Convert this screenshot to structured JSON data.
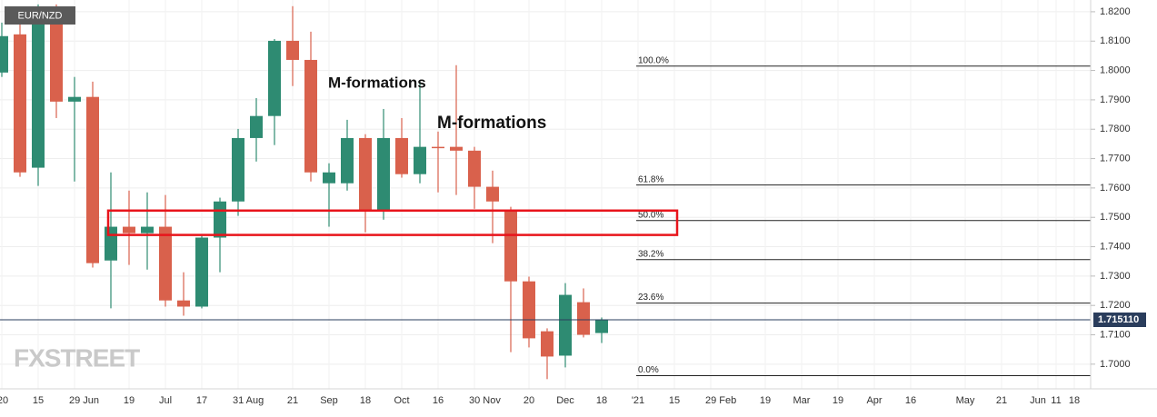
{
  "chart_data": {
    "type": "candlestick",
    "symbol": "EUR/NZD",
    "logo": "FXSTREET",
    "annotations": [
      "M-formations",
      "M-formations"
    ],
    "categories": [
      "'20",
      null,
      "15",
      null,
      "29 Jun",
      null,
      null,
      "19",
      null,
      "Jul",
      null,
      "17",
      null,
      "31 Aug",
      null,
      null,
      "21",
      null,
      "Sep",
      null,
      "18",
      null,
      "Oct",
      null,
      "16",
      null,
      "30 Nov",
      null,
      null,
      "20",
      null,
      "Dec",
      null,
      "18",
      null,
      "'21",
      null,
      "15",
      null,
      "29 Feb",
      null,
      null,
      "19",
      null,
      "Mar",
      null,
      "19",
      null,
      "Apr",
      null,
      "16",
      null,
      null,
      "May",
      null,
      "21",
      null,
      "Jun",
      "11",
      "18"
    ],
    "open": [
      1.7993,
      1.8123,
      1.7669,
      1.8209,
      1.7894,
      1.791,
      1.7353,
      1.7468,
      1.7446,
      1.7468,
      1.7217,
      1.7196,
      1.7431,
      1.7554,
      1.777,
      1.7845,
      1.8101,
      1.8036,
      1.7616,
      1.7616,
      1.777,
      1.7523,
      1.777,
      1.7647,
      1.774,
      1.774,
      1.7727,
      1.7604,
      1.7523,
      1.7282,
      1.7112,
      1.7029,
      1.7211,
      1.7106,
      null,
      null,
      null,
      null,
      null,
      null,
      null,
      null,
      null,
      null,
      null,
      null,
      null,
      null,
      null,
      null,
      null,
      null,
      null,
      null,
      null,
      null,
      null,
      null,
      null,
      null
    ],
    "high": [
      1.8163,
      1.8185,
      1.8225,
      1.8225,
      1.7978,
      1.7962,
      1.7653,
      1.7591,
      1.7585,
      1.7576,
      1.7313,
      1.7437,
      1.7567,
      1.7801,
      1.7906,
      1.8107,
      1.8219,
      1.8132,
      1.7684,
      1.7832,
      1.7783,
      1.7869,
      1.7838,
      1.7962,
      1.7792,
      1.8018,
      1.774,
      1.7659,
      1.7536,
      1.7298,
      1.7122,
      1.7276,
      1.7258,
      1.7159,
      null,
      null,
      null,
      null,
      null,
      null,
      null,
      null,
      null,
      null,
      null,
      null,
      null,
      null,
      null,
      null,
      null,
      null,
      null,
      null,
      null,
      null,
      null,
      null,
      null,
      null
    ],
    "low": [
      1.7978,
      1.7638,
      1.7607,
      1.7838,
      1.7622,
      1.7329,
      1.719,
      1.7338,
      1.7322,
      1.7196,
      1.7165,
      1.719,
      1.7313,
      1.7505,
      1.769,
      1.7746,
      1.7947,
      1.7622,
      1.7468,
      1.7591,
      1.7449,
      1.7492,
      1.7635,
      1.7616,
      1.7585,
      1.7576,
      1.7529,
      1.7412,
      1.7041,
      1.7057,
      1.6949,
      1.6989,
      1.7091,
      1.7072,
      null,
      null,
      null,
      null,
      null,
      null,
      null,
      null,
      null,
      null,
      null,
      null,
      null,
      null,
      null,
      null,
      null,
      null,
      null,
      null,
      null,
      null,
      null,
      null,
      null,
      null
    ],
    "close": [
      1.8117,
      1.7653,
      1.8209,
      1.7894,
      1.791,
      1.7344,
      1.7468,
      1.7446,
      1.7468,
      1.7217,
      1.7196,
      1.7431,
      1.7554,
      1.777,
      1.7845,
      1.8101,
      1.8036,
      1.7653,
      1.7653,
      1.777,
      1.7523,
      1.777,
      1.7647,
      1.774,
      1.7737,
      1.7727,
      1.7604,
      1.7554,
      1.7282,
      1.7088,
      1.7026,
      1.7236,
      1.71,
      1.7152,
      null,
      null,
      null,
      null,
      null,
      null,
      null,
      null,
      null,
      null,
      null,
      null,
      null,
      null,
      null,
      null,
      null,
      null,
      null,
      null,
      null,
      null,
      null,
      null,
      null,
      null
    ],
    "up_color": "#2e8b72",
    "down_color": "#d9614c",
    "ylim": [
      1.6916,
      1.824
    ],
    "yticks": [
      {
        "value": 1.7,
        "label": "1.7000"
      },
      {
        "value": 1.71,
        "label": "1.7100"
      },
      {
        "value": 1.72,
        "label": "1.7200"
      },
      {
        "value": 1.73,
        "label": "1.7300"
      },
      {
        "value": 1.74,
        "label": "1.7400"
      },
      {
        "value": 1.75,
        "label": "1.7500"
      },
      {
        "value": 1.76,
        "label": "1.7600"
      },
      {
        "value": 1.77,
        "label": "1.7700"
      },
      {
        "value": 1.78,
        "label": "1.7800"
      },
      {
        "value": 1.79,
        "label": "1.7900"
      },
      {
        "value": 1.8,
        "label": "1.8000"
      },
      {
        "value": 1.81,
        "label": "1.8100"
      },
      {
        "value": 1.82,
        "label": "1.8200"
      }
    ],
    "grid": true,
    "fib_levels": [
      {
        "value": 1.8015,
        "label": "100.0%"
      },
      {
        "value": 1.761,
        "label": "61.8%"
      },
      {
        "value": 1.7489,
        "label": "50.0%"
      },
      {
        "value": 1.7356,
        "label": "38.2%"
      },
      {
        "value": 1.7208,
        "label": "23.6%"
      },
      {
        "value": 1.6961,
        "label": "0.0%"
      }
    ],
    "last_price": {
      "value": 1.71511,
      "label": "1.715110"
    },
    "highlight": {
      "low": 1.744,
      "high": 1.7523,
      "color": "#e8141b"
    }
  }
}
